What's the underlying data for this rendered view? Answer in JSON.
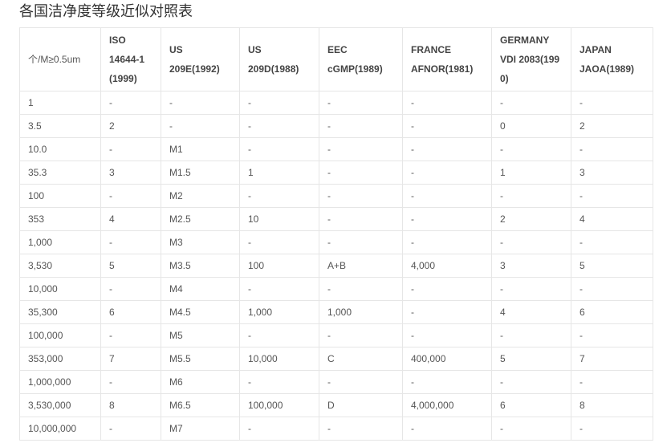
{
  "title": "各国洁净度等级近似对照表",
  "table": {
    "headers": [
      [
        "个/M≥0.5um"
      ],
      [
        "ISO",
        "14644-1",
        "(1999)"
      ],
      [
        "US",
        "209E(1992)"
      ],
      [
        "US",
        "209D(1988)"
      ],
      [
        "EEC",
        "cGMP(1989)"
      ],
      [
        "FRANCE",
        "AFNOR(1981)"
      ],
      [
        "GERMANY",
        "VDI 2083(199",
        "0)"
      ],
      [
        "JAPAN",
        "JAOA(1989)"
      ]
    ],
    "rows": [
      [
        "1",
        "-",
        "-",
        "-",
        "-",
        "-",
        "-",
        "-"
      ],
      [
        "3.5",
        "2",
        "-",
        "-",
        "-",
        "-",
        "0",
        "2"
      ],
      [
        "10.0",
        "-",
        "M1",
        "-",
        "-",
        "-",
        "-",
        "-"
      ],
      [
        "35.3",
        "3",
        "M1.5",
        "1",
        "-",
        "-",
        "1",
        "3"
      ],
      [
        "100",
        "-",
        "M2",
        "-",
        "-",
        "-",
        "-",
        "-"
      ],
      [
        "353",
        "4",
        "M2.5",
        "10",
        "-",
        "-",
        "2",
        "4"
      ],
      [
        "1,000",
        "-",
        "M3",
        "-",
        "-",
        "-",
        "-",
        "-"
      ],
      [
        "3,530",
        "5",
        "M3.5",
        "100",
        "A+B",
        "4,000",
        "3",
        "5"
      ],
      [
        "10,000",
        "-",
        "M4",
        "-",
        "-",
        "-",
        "-",
        "-"
      ],
      [
        "35,300",
        "6",
        "M4.5",
        "1,000",
        "1,000",
        "-",
        "4",
        "6"
      ],
      [
        "100,000",
        "-",
        "M5",
        "-",
        "-",
        "-",
        "-",
        "-"
      ],
      [
        "353,000",
        "7",
        "M5.5",
        "10,000",
        "C",
        "400,000",
        "5",
        "7"
      ],
      [
        "1,000,000",
        "-",
        "M6",
        "-",
        "-",
        "-",
        "-",
        "-"
      ],
      [
        "3,530,000",
        "8",
        "M6.5",
        "100,000",
        "D",
        "4,000,000",
        "6",
        "8"
      ],
      [
        "10,000,000",
        "-",
        "M7",
        "-",
        "-",
        "-",
        "-",
        "-"
      ]
    ]
  }
}
